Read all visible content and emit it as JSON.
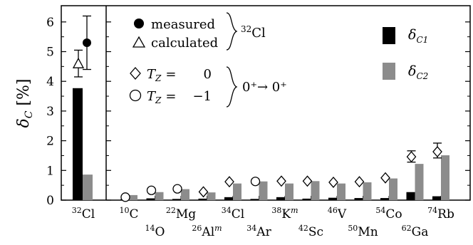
{
  "chart_data": {
    "type": "bar",
    "ylabel": "δ_C [%]",
    "ylim": [
      0,
      6.5
    ],
    "yticks": [
      "0",
      "1",
      "2",
      "3",
      "4",
      "5",
      "6"
    ],
    "grid": false,
    "legend_placement": "top-right",
    "colors": {
      "dC1": "#000000",
      "dC2": "#8c8c8c"
    },
    "left_panel": {
      "nuclide": {
        "sup": "32",
        "sym": "Cl"
      },
      "bars": [
        {
          "series": "δC1",
          "value": 3.77
        },
        {
          "series": "δC2",
          "value": 0.86
        }
      ],
      "measured": {
        "value": 5.3,
        "err_low": 4.4,
        "err_high": 6.2
      },
      "calculated": {
        "value": 4.6,
        "err_low": 4.15,
        "err_high": 5.05
      }
    },
    "series": [
      {
        "name": "δC1",
        "values": [
          0.03,
          0.06,
          0.04,
          0.05,
          0.1,
          0.04,
          0.1,
          0.05,
          0.08,
          0.07,
          0.07,
          0.27,
          0.13
        ]
      },
      {
        "name": "δC2",
        "values": [
          0.17,
          0.27,
          0.37,
          0.26,
          0.56,
          0.63,
          0.56,
          0.64,
          0.56,
          0.6,
          0.73,
          1.22,
          1.51
        ]
      }
    ],
    "categories": [
      {
        "sup": "10",
        "sym": "C",
        "supm": ""
      },
      {
        "sup": "14",
        "sym": "O",
        "supm": ""
      },
      {
        "sup": "22",
        "sym": "Mg",
        "supm": ""
      },
      {
        "sup": "26",
        "sym": "Al",
        "supm": "m"
      },
      {
        "sup": "34",
        "sym": "Cl",
        "supm": ""
      },
      {
        "sup": "34",
        "sym": "Ar",
        "supm": ""
      },
      {
        "sup": "38",
        "sym": "K",
        "supm": "m"
      },
      {
        "sup": "42",
        "sym": "Sc",
        "supm": ""
      },
      {
        "sup": "46",
        "sym": "V",
        "supm": ""
      },
      {
        "sup": "50",
        "sym": "Mn",
        "supm": ""
      },
      {
        "sup": "54",
        "sym": "Co",
        "supm": ""
      },
      {
        "sup": "62",
        "sym": "Ga",
        "supm": ""
      },
      {
        "sup": "74",
        "sym": "Rb",
        "supm": ""
      }
    ],
    "markers": [
      {
        "shape": "circle",
        "value": 0.1,
        "err": null
      },
      {
        "shape": "circle",
        "value": 0.33,
        "err": null
      },
      {
        "shape": "circle",
        "value": 0.38,
        "err": null
      },
      {
        "shape": "diamond",
        "value": 0.28,
        "err": null
      },
      {
        "shape": "diamond",
        "value": 0.62,
        "err": null
      },
      {
        "shape": "circle",
        "value": 0.63,
        "err": null
      },
      {
        "shape": "diamond",
        "value": 0.64,
        "err": null
      },
      {
        "shape": "diamond",
        "value": 0.64,
        "err": null
      },
      {
        "shape": "diamond",
        "value": 0.6,
        "err": null
      },
      {
        "shape": "diamond",
        "value": 0.62,
        "err": null
      },
      {
        "shape": "diamond",
        "value": 0.75,
        "err": null
      },
      {
        "shape": "diamond",
        "value": 1.46,
        "err": [
          1.28,
          1.66
        ]
      },
      {
        "shape": "diamond",
        "value": 1.63,
        "err": [
          1.42,
          1.92
        ]
      }
    ],
    "legend": {
      "measured": "measured",
      "calculated": "calculated",
      "group1_label_sup": "32",
      "group1_label_sym": "Cl",
      "tz0_eq": "=",
      "tz0_val": "0",
      "tz1_eq": "=",
      "tz1_val": "−1",
      "transition": "0⁺→ 0⁺",
      "dC1": "δ",
      "dC1_sub": "C1",
      "dC2": "δ",
      "dC2_sub": "C2"
    }
  }
}
